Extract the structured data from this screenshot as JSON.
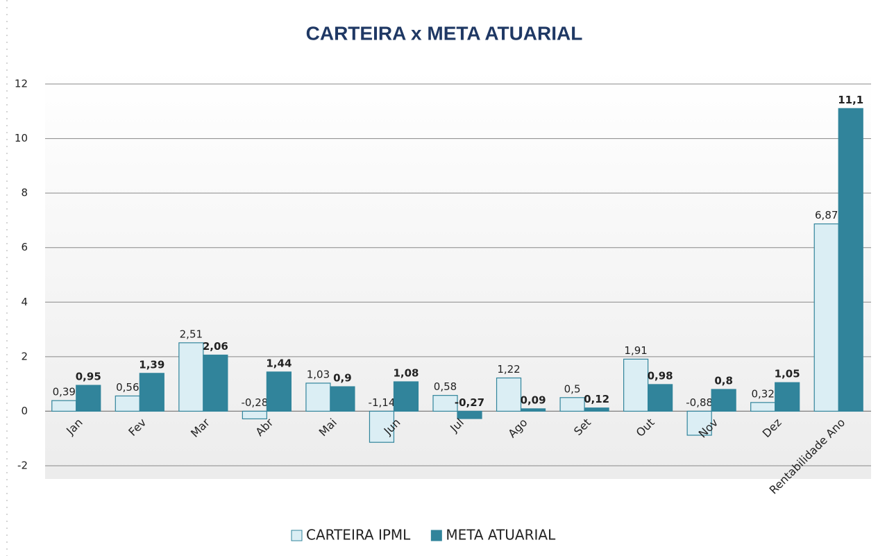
{
  "chart_data": {
    "type": "bar",
    "title": "CARTEIRA x META ATUARIAL",
    "categories": [
      "Jan",
      "Fev",
      "Mar",
      "Abr",
      "Mai",
      "Jun",
      "Jul",
      "Ago",
      "Set",
      "Out",
      "Nov",
      "Dez",
      "Rentabilidade  Ano"
    ],
    "series": [
      {
        "name": "CARTEIRA IPML",
        "color": "#dbeef4",
        "values": [
          0.39,
          0.56,
          2.51,
          -0.28,
          1.03,
          -1.14,
          0.58,
          1.22,
          0.5,
          1.91,
          -0.88,
          0.32,
          6.87
        ],
        "value_labels": [
          "0,39",
          "0,56",
          "2,51",
          "-0,28",
          "1,03",
          "-1,14",
          "0,58",
          "1,22",
          "0,5",
          "1,91",
          "-0,88",
          "0,32",
          "6,87"
        ]
      },
      {
        "name": "META ATUARIAL",
        "color": "#31849b",
        "values": [
          0.95,
          1.39,
          2.06,
          1.44,
          0.9,
          1.08,
          -0.27,
          0.09,
          0.12,
          0.98,
          0.8,
          1.05,
          11.1
        ],
        "value_labels": [
          "0,95",
          "1,39",
          "2,06",
          "1,44",
          "0,9",
          "1,08",
          "-0,27",
          "0,09",
          "0,12",
          "0,98",
          "0,8",
          "1,05",
          "11,1"
        ]
      }
    ],
    "ylim": [
      -2,
      12
    ],
    "yticks": [
      -2,
      0,
      2,
      4,
      6,
      8,
      10,
      12
    ],
    "grid": true
  }
}
